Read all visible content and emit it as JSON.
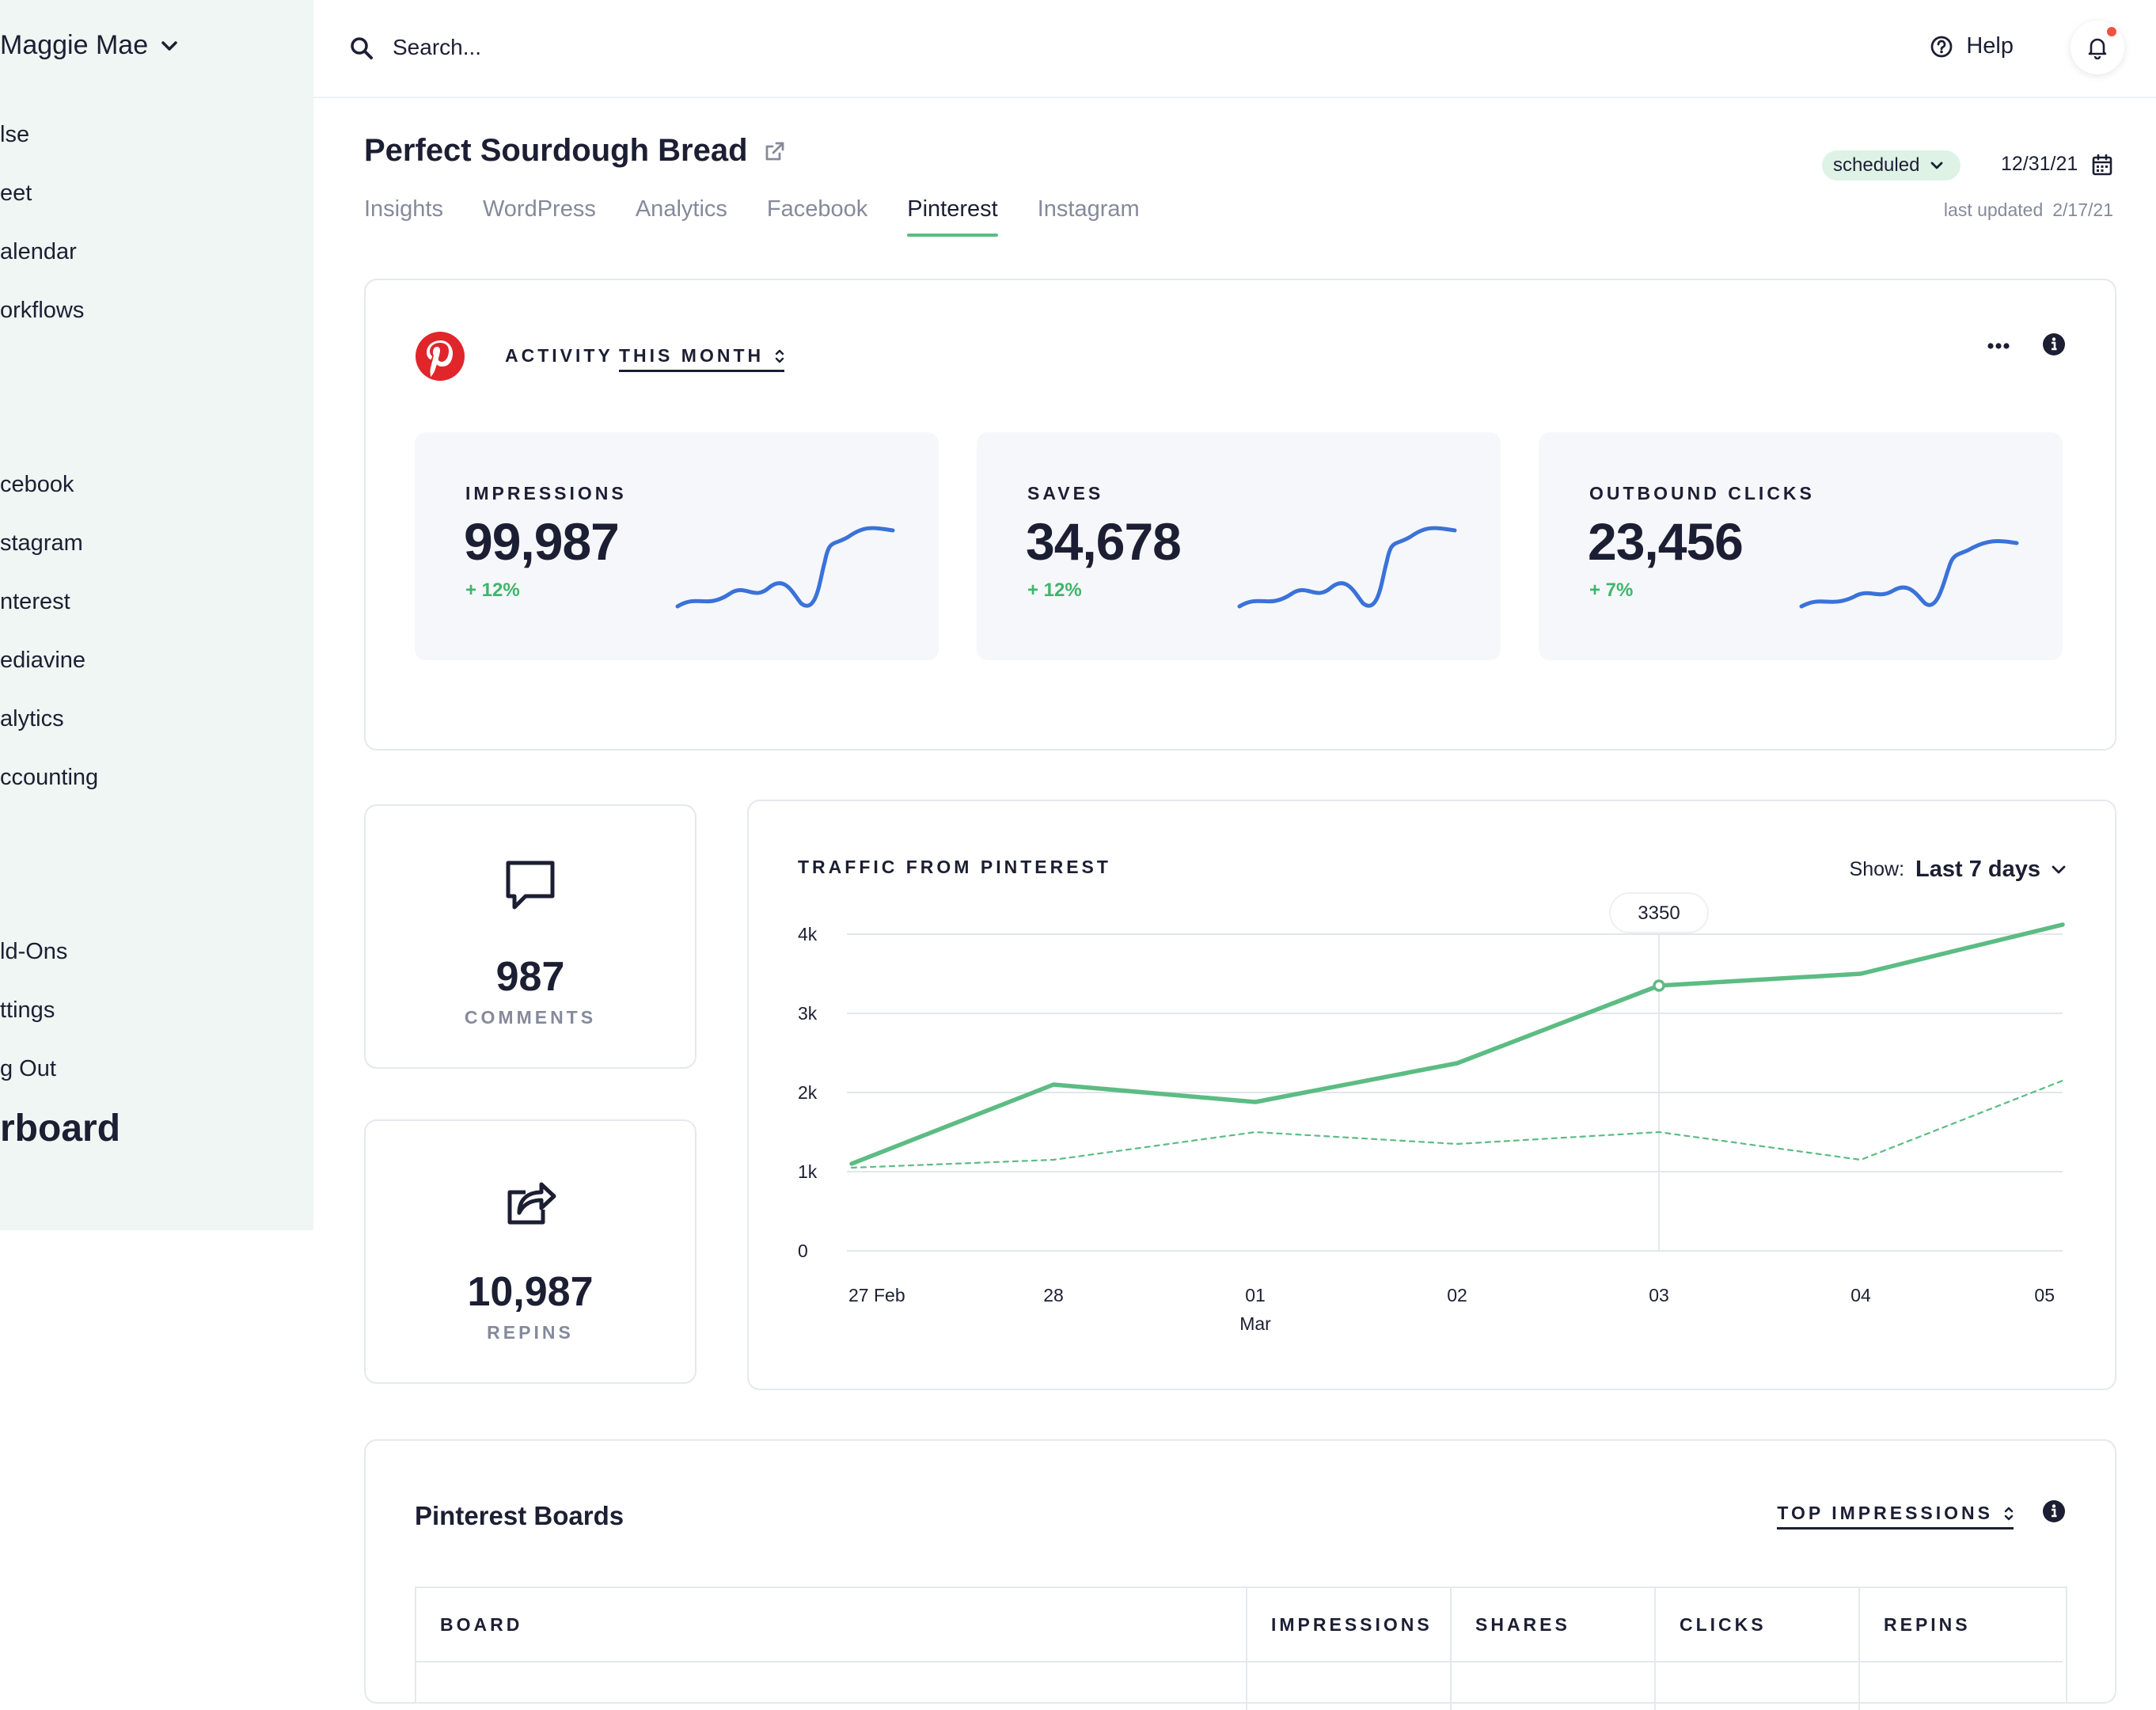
{
  "sidebar": {
    "user_name": "Maggie Mae",
    "items": [
      {
        "label": "lse"
      },
      {
        "label": "eet"
      },
      {
        "label": "alendar"
      },
      {
        "label": "orkflows"
      },
      {
        "label": "cebook"
      },
      {
        "label": "stagram"
      },
      {
        "label": "nterest"
      },
      {
        "label": "ediavine"
      },
      {
        "label": "alytics"
      },
      {
        "label": "ccounting"
      },
      {
        "label": "ld-Ons"
      },
      {
        "label": "ttings"
      },
      {
        "label": "g Out"
      }
    ],
    "brand": "rboard"
  },
  "topbar": {
    "search_placeholder": "Search...",
    "help_label": "Help"
  },
  "post": {
    "title": "Perfect Sourdough Bread",
    "status": "scheduled",
    "date": "12/31/21",
    "last_updated_label": "last updated",
    "last_updated_value": "2/17/21"
  },
  "tabs": [
    {
      "label": "Insights"
    },
    {
      "label": "WordPress"
    },
    {
      "label": "Analytics"
    },
    {
      "label": "Facebook"
    },
    {
      "label": "Pinterest",
      "active": true
    },
    {
      "label": "Instagram"
    }
  ],
  "activity": {
    "label": "ACTIVITY",
    "range": "THIS MONTH",
    "metrics": [
      {
        "label": "IMPRESSIONS",
        "value": "99,987",
        "change": "+ 12%"
      },
      {
        "label": "SAVES",
        "value": "34,678",
        "change": "+ 12%"
      },
      {
        "label": "OUTBOUND CLICKS",
        "value": "23,456",
        "change": "+ 7%"
      }
    ]
  },
  "stats": {
    "comments_value": "987",
    "comments_label": "COMMENTS",
    "repins_value": "10,987",
    "repins_label": "REPINS"
  },
  "traffic": {
    "title": "TRAFFIC FROM PINTEREST",
    "show_label": "Show:",
    "show_value": "Last 7 days"
  },
  "chart_data": {
    "type": "line",
    "title": "TRAFFIC FROM PINTEREST",
    "x": [
      "27 Feb",
      "28",
      "01 Mar",
      "02",
      "03",
      "04",
      "05"
    ],
    "x_tick_labels": [
      [
        "27 Feb"
      ],
      [
        "28"
      ],
      [
        "01",
        "Mar"
      ],
      [
        "02"
      ],
      [
        "03"
      ],
      [
        "04"
      ],
      [
        "05"
      ]
    ],
    "y_ticks": [
      "0",
      "1k",
      "2k",
      "3k",
      "4k"
    ],
    "ylim": [
      0,
      4000
    ],
    "series": [
      {
        "values": [
          1100,
          2100,
          1880,
          2370,
          3350,
          3500,
          4120
        ],
        "style": "solid",
        "color": "#5cbc83"
      },
      {
        "values": [
          1050,
          1150,
          1500,
          1350,
          1500,
          1150,
          2150
        ],
        "style": "dashed",
        "color": "#5cbc83"
      }
    ],
    "highlight": {
      "index": 4,
      "label": "3350"
    },
    "grid": true
  },
  "boards": {
    "title": "Pinterest Boards",
    "sort_label": "TOP IMPRESSIONS",
    "columns": [
      "BOARD",
      "IMPRESSIONS",
      "SHARES",
      "CLICKS",
      "REPINS"
    ]
  },
  "colors": {
    "accent": "#5cbc83",
    "spark": "#3a72d9",
    "pinterest": "#e0262b",
    "positive": "#3fb56c",
    "sidebar_bg": "#f0f6f3"
  }
}
